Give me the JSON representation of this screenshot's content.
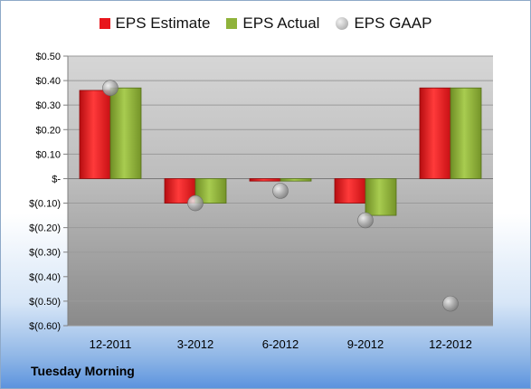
{
  "company": "Tuesday Morning",
  "chart_data": {
    "type": "bar",
    "categories": [
      "12-2011",
      "3-2012",
      "6-2012",
      "9-2012",
      "12-2012"
    ],
    "series": [
      {
        "name": "EPS Estimate",
        "kind": "bar",
        "color": "#e8161c",
        "values": [
          0.36,
          -0.1,
          -0.01,
          -0.1,
          0.37
        ]
      },
      {
        "name": "EPS Actual",
        "kind": "bar",
        "color": "#8fb33b",
        "values": [
          0.37,
          -0.1,
          -0.01,
          -0.15,
          0.37
        ]
      },
      {
        "name": "EPS GAAP",
        "kind": "point",
        "color": "#b9b9b9",
        "values": [
          0.37,
          -0.1,
          -0.05,
          -0.17,
          -0.51
        ]
      }
    ],
    "ylim": [
      -0.6,
      0.5
    ],
    "yticks": [
      0.5,
      0.4,
      0.3,
      0.2,
      0.1,
      0,
      -0.1,
      -0.2,
      -0.3,
      -0.4,
      -0.5,
      -0.6
    ],
    "ytick_labels": [
      "$0.50",
      "$0.40",
      "$0.30",
      "$0.20",
      "$0.10",
      "$-",
      "$(0.10)",
      "$(0.20)",
      "$(0.30)",
      "$(0.40)",
      "$(0.50)",
      "$(0.60)"
    ],
    "legend_position": "top",
    "grid": true
  }
}
